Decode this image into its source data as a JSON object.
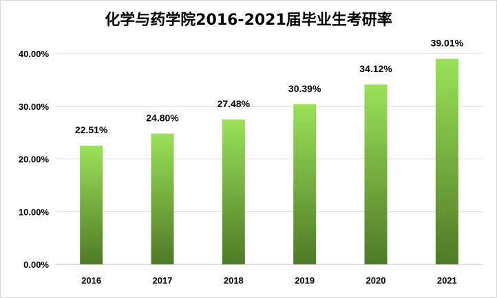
{
  "chart_data": {
    "type": "bar",
    "title": "化学与药学院2016-2021届毕业生考研率",
    "categories": [
      "2016",
      "2017",
      "2018",
      "2019",
      "2020",
      "2021"
    ],
    "values": [
      22.51,
      24.8,
      27.48,
      30.39,
      34.12,
      39.01
    ],
    "data_labels": [
      "22.51%",
      "24.80%",
      "27.48%",
      "30.39%",
      "34.12%",
      "39.01%"
    ],
    "ylim": [
      0,
      40
    ],
    "y_ticks": [
      0,
      10,
      20,
      30,
      40
    ],
    "y_tick_labels": [
      "0.00%",
      "10.00%",
      "20.00%",
      "30.00%",
      "40.00%"
    ],
    "grid": true,
    "legend": "none",
    "bar_gradient": {
      "top": "#9be158",
      "bottom": "#4e7a26"
    }
  }
}
